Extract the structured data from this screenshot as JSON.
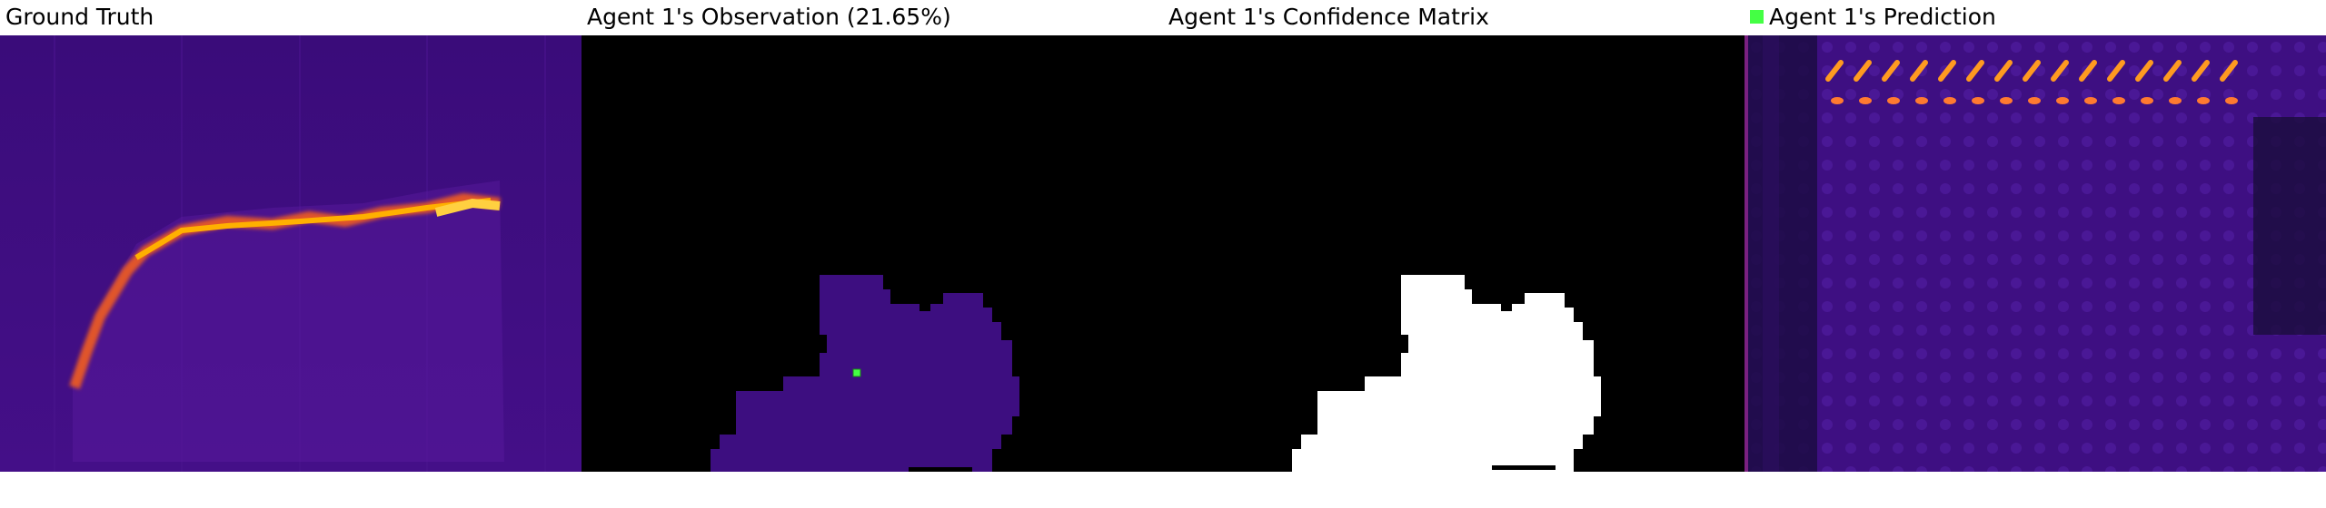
{
  "panels": [
    {
      "title": "Ground Truth"
    },
    {
      "title": "Agent 1's Observation (21.65%)"
    },
    {
      "title": "Agent 1's Confidence Matrix"
    },
    {
      "title": "Agent 1's Prediction"
    }
  ],
  "colors": {
    "background": "#ffffff",
    "heatmap_base": "#3c0c7e",
    "heatmap_hot": "#ffb000",
    "mask_off": "#000000",
    "mask_on": "#ffffff",
    "agent_marker": "#44ff44"
  },
  "legend": {
    "agent_marker_icon": "green-square-icon"
  }
}
